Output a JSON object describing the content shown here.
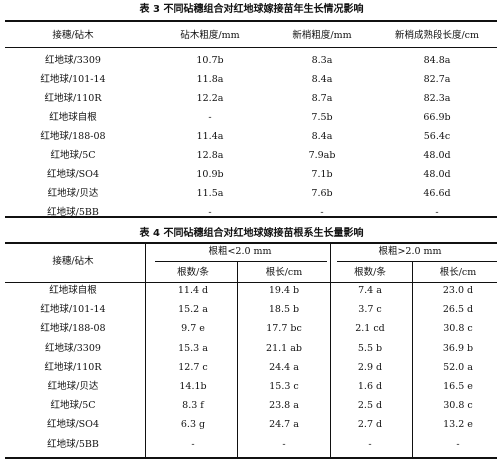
{
  "table3": {
    "caption": "表 3    不同砧穗组合对红地球嫁接苗年生长情况影响",
    "headers": [
      "接穗/砧木",
      "砧木粗度/mm",
      "新梢粗度/mm",
      "新梢成熟段长度/cm"
    ],
    "rows": [
      [
        "红地球/3309",
        "10.7b",
        "8.3a",
        "84.8a"
      ],
      [
        "红地球/101-14",
        "11.8a",
        "8.4a",
        "82.7a"
      ],
      [
        "红地球/110R",
        "12.2a",
        "8.7a",
        "82.3a"
      ],
      [
        "红地球自根",
        "-",
        "7.5b",
        "66.9b"
      ],
      [
        "红地球/188-08",
        "11.4a",
        "8.4a",
        "56.4c"
      ],
      [
        "红地球/5C",
        "12.8a",
        "7.9ab",
        "48.0d"
      ],
      [
        "红地球/SO4",
        "10.9b",
        "7.1b",
        "48.0d"
      ],
      [
        "红地球/贝达",
        "11.5a",
        "7.6b",
        "46.6d"
      ],
      [
        "红地球/5BB",
        "-",
        "-",
        "-"
      ]
    ]
  },
  "table4": {
    "caption": "表 4    不同砧穗组合对红地球嫁接苗根系生长量影响",
    "stub_header": "接穗/砧木",
    "group_headers": [
      "根粗<2.0 mm",
      "根粗>2.0 mm"
    ],
    "sub_headers": [
      "根数/条",
      "根长/cm",
      "根数/条",
      "根长/cm"
    ],
    "rows": [
      [
        "红地球自根",
        "11.4 d",
        "19.4 b",
        "7.4 a",
        "23.0 d"
      ],
      [
        "红地球/101-14",
        "15.2 a",
        "18.5 b",
        "3.7 c",
        "26.5 d"
      ],
      [
        "红地球/188-08",
        "9.7 e",
        "17.7 bc",
        "2.1 cd",
        "30.8 c"
      ],
      [
        "红地球/3309",
        "15.3 a",
        "21.1 ab",
        "5.5 b",
        "36.9 b"
      ],
      [
        "红地球/110R",
        "12.7 c",
        "24.4 a",
        "2.9 d",
        "52.0 a"
      ],
      [
        "红地球/贝达",
        "14.1b",
        "15.3 c",
        "1.6 d",
        "16.5 e"
      ],
      [
        "红地球/5C",
        "8.3 f",
        "23.8 a",
        "2.5 d",
        "30.8 c"
      ],
      [
        "红地球/SO4",
        "6.3 g",
        "24.7 a",
        "2.7 d",
        "13.2 e"
      ],
      [
        "红地球/5BB",
        "-",
        "-",
        "-",
        "-"
      ]
    ]
  }
}
